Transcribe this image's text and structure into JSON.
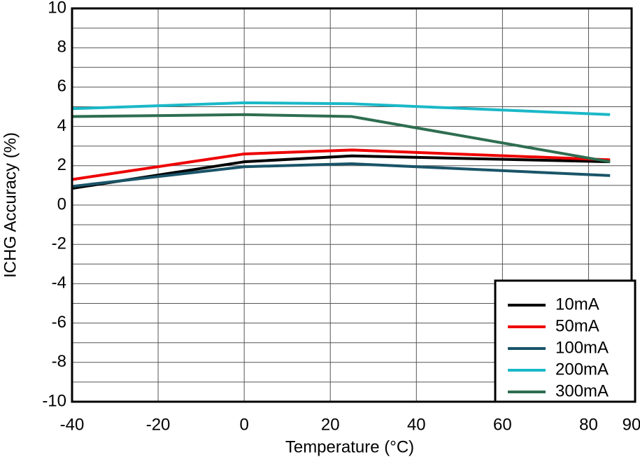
{
  "chart_data": {
    "type": "line",
    "x_label": "Temperature (°C)",
    "y_label": "ICHG Accuracy (%)",
    "x": [
      -40,
      0,
      25,
      85
    ],
    "series": [
      {
        "name": "10mA",
        "color": "#000000",
        "values": [
          0.85,
          2.2,
          2.5,
          2.2
        ]
      },
      {
        "name": "50mA",
        "color": "#ee0000",
        "values": [
          1.3,
          2.6,
          2.8,
          2.3
        ]
      },
      {
        "name": "100mA",
        "color": "#1a5468",
        "values": [
          0.95,
          1.95,
          2.1,
          1.5
        ]
      },
      {
        "name": "200mA",
        "color": "#1ab8c8",
        "values": [
          4.9,
          5.2,
          5.15,
          4.6
        ]
      },
      {
        "name": "300mA",
        "color": "#2e6e50",
        "values": [
          4.5,
          4.6,
          4.5,
          2.2
        ]
      }
    ],
    "xlim": [
      -40,
      90
    ],
    "xticks": [
      -40,
      -20,
      0,
      20,
      40,
      60,
      80,
      90
    ],
    "ylim": [
      -10,
      10
    ],
    "yticks": [
      -10,
      -8,
      -6,
      -4,
      -2,
      0,
      2,
      4,
      6,
      8,
      10
    ],
    "y_minor_ticks": [
      -9,
      -7,
      -5,
      -3,
      -1,
      1,
      3,
      5,
      7,
      9
    ],
    "grid": true,
    "legend": "lower right"
  }
}
